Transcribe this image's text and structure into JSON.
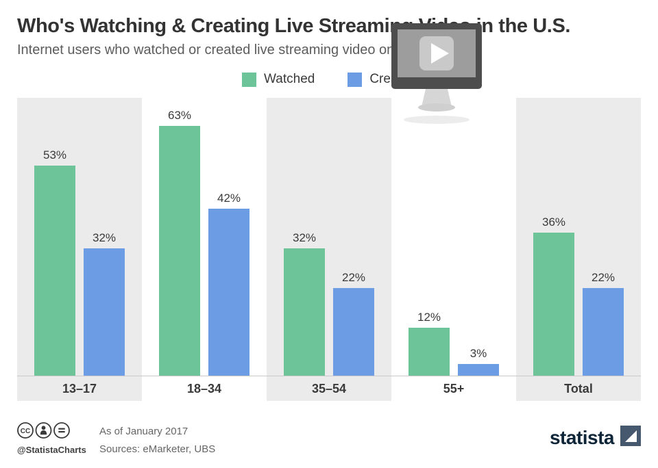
{
  "header": {
    "title": "Who's Watching & Creating Live Streaming Video in the U.S.",
    "subtitle": "Internet users who watched or created live streaming video on social media"
  },
  "legend": {
    "watched": "Watched",
    "created": "Created"
  },
  "chart_data": {
    "type": "bar",
    "categories": [
      "13–17",
      "18–34",
      "35–54",
      "55+",
      "Total"
    ],
    "series": [
      {
        "name": "Watched",
        "color": "#6dc498",
        "values": [
          53,
          63,
          32,
          12,
          36
        ]
      },
      {
        "name": "Created",
        "color": "#6b9ce4",
        "values": [
          32,
          42,
          22,
          3,
          22
        ]
      }
    ],
    "value_suffix": "%",
    "ylim": [
      0,
      70
    ],
    "grid": false,
    "legend_position": "top",
    "panel_categories": [
      0,
      2,
      4
    ],
    "panel_color": "#ebebeb",
    "baseline_color": "#c9c9c9",
    "title": "Who's Watching & Creating Live Streaming Video in the U.S.",
    "xlabel": "",
    "ylabel": ""
  },
  "icons": {
    "monitor": "monitor-play-icon",
    "cc": "cc-license-icons"
  },
  "footer": {
    "handle": "@StatistaCharts",
    "as_of": "As of January 2017",
    "sources": "Sources: eMarketer, UBS",
    "logo_text": "statista"
  }
}
